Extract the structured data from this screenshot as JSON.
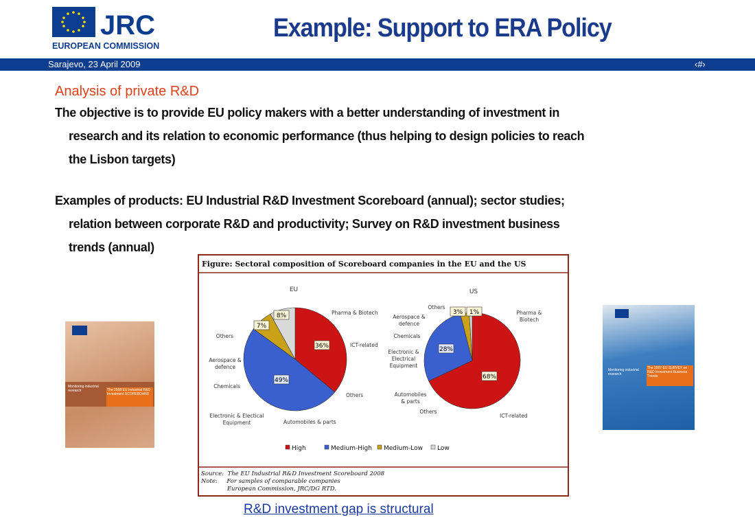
{
  "header": {
    "logo_text": "JRC",
    "organization": "EUROPEAN COMMISSION",
    "title": "Example: Support to ERA Policy",
    "location_date": "Sarajevo, 23 April  2009",
    "slide_number": "‹#›"
  },
  "body": {
    "heading": "Analysis of private R&D",
    "paragraphs": [
      [
        "The objective is to provide EU policy makers with a better understanding of investment in",
        "research and its relation to economic performance (thus helping to design policies to reach",
        "the Lisbon targets)"
      ],
      [
        "Examples of products: EU Industrial R&D Investment Scoreboard (annual); sector studies;",
        "relation between corporate R&D and productivity; Survey on R&D investment business",
        "trends (annual)"
      ]
    ]
  },
  "figure": {
    "title": "Figure: Sectoral composition of Scoreboard companies in the EU and the US",
    "legend": [
      "High",
      "Medium-High",
      "Medium-Low",
      "Low"
    ],
    "colors": [
      "#cc1414",
      "#3a5fcf",
      "#c9a21a",
      "#d9d9d9"
    ],
    "pies": [
      {
        "name": "EU",
        "values": [
          36,
          49,
          7,
          8
        ],
        "value_labels": [
          "36%",
          "49%",
          "7%",
          "8%"
        ],
        "sector_labels": [
          [
            "Pharma & Biotech"
          ],
          [
            "ICT-related"
          ],
          [
            "Others"
          ],
          [
            "Automobiles & parts"
          ],
          [
            "Electronic & Electical",
            "Equipment"
          ],
          [
            "Chemicals"
          ],
          [
            "Aerospace &",
            "defence"
          ],
          [
            "Others"
          ]
        ]
      },
      {
        "name": "US",
        "values": [
          68,
          28,
          3,
          1
        ],
        "value_labels": [
          "68%",
          "28%",
          "3%",
          "1%"
        ],
        "sector_labels": [
          [
            "Pharma &",
            "Biotech"
          ],
          [
            "ICT-related"
          ],
          [
            "Others"
          ],
          [
            "Automobiles",
            "& parts"
          ],
          [
            "Electronic &",
            "Electrical",
            "Equipment"
          ],
          [
            "Chemicals"
          ],
          [
            "Aerospace &",
            "defence"
          ],
          [
            "Others"
          ]
        ]
      }
    ],
    "source": [
      "Source:  The EU Industrial R&D Investment Scoreboard 2008",
      "Note:     For samples of comparable companies",
      "              European Commission, JRC/DG RTD."
    ]
  },
  "books": [
    {
      "series": "Monitoring industrial research",
      "title": "The 2008 EU Industrial R&D Investment SCOREBOARD"
    },
    {
      "series": "Monitoring industrial research",
      "title": "The 2007 EU SURVEY on R&D Investment Business Trends"
    }
  ],
  "footer_link": "R&D investment gap is structural"
}
